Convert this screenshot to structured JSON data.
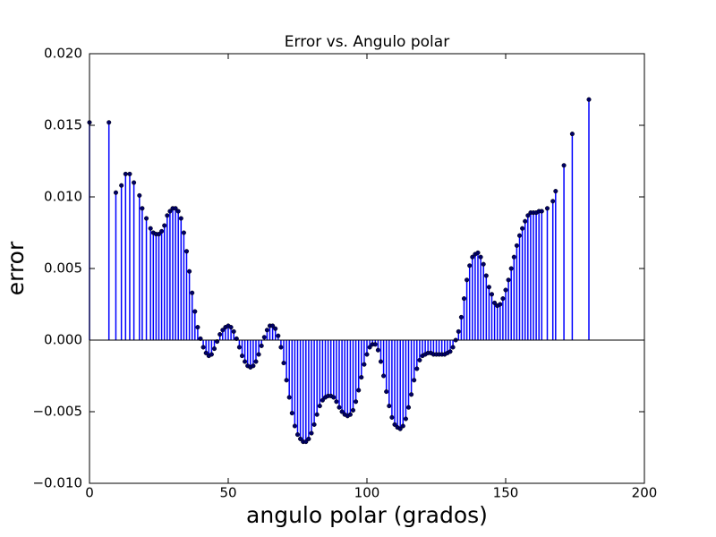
{
  "chart_data": {
    "type": "stem",
    "title": "Error vs. Angulo polar",
    "xlabel": "angulo polar (grados)",
    "ylabel": "error",
    "xlim": [
      0,
      200
    ],
    "xticks": [
      0,
      50,
      100,
      150,
      200
    ],
    "ylim": [
      -0.01,
      0.02
    ],
    "yticks": [
      {
        "value": -0.01,
        "label": "−0.010"
      },
      {
        "value": -0.005,
        "label": "−0.005"
      },
      {
        "value": 0,
        "label": "0.000"
      },
      {
        "value": 0.005,
        "label": "0.005"
      },
      {
        "value": 0.01,
        "label": "0.010"
      },
      {
        "value": 0.015,
        "label": "0.015"
      },
      {
        "value": 0.02,
        "label": "0.020"
      }
    ],
    "color": "#0000ff",
    "marker_color": "#000066",
    "x": [
      0,
      7,
      9.5,
      11.5,
      13,
      14.5,
      16,
      18,
      19,
      20.5,
      22,
      23,
      24,
      25,
      26,
      27,
      28,
      29,
      30,
      31,
      32,
      33,
      34,
      35,
      36,
      37,
      38,
      39,
      40,
      41,
      42,
      43,
      44,
      45,
      46,
      47,
      48,
      49,
      50,
      51,
      52,
      53,
      54,
      55,
      56,
      57,
      58,
      59,
      60,
      61,
      62,
      63,
      64,
      65,
      66,
      67,
      68,
      69,
      70,
      71,
      72,
      73,
      74,
      75,
      76,
      77,
      78,
      79,
      80,
      81,
      82,
      83,
      84,
      85,
      86,
      87,
      88,
      89,
      90,
      91,
      92,
      93,
      94,
      95,
      96,
      97,
      98,
      99,
      100,
      101,
      102,
      103,
      104,
      105,
      106,
      107,
      108,
      109,
      110,
      111,
      112,
      113,
      114,
      115,
      116,
      117,
      118,
      119,
      120,
      121,
      122,
      123,
      124,
      125,
      126,
      127,
      128,
      129,
      130,
      131,
      132,
      133,
      134,
      135,
      136,
      137,
      138,
      139,
      140,
      141,
      142,
      143,
      144,
      145,
      146,
      147,
      148,
      149,
      150,
      151,
      152,
      153,
      154,
      155,
      156,
      157,
      158,
      159,
      160,
      161,
      162,
      163,
      165,
      167,
      168,
      171,
      174,
      180
    ],
    "values": [
      0.0152,
      0.0152,
      0.0103,
      0.0108,
      0.0116,
      0.0116,
      0.011,
      0.0101,
      0.0092,
      0.0085,
      0.0078,
      0.0075,
      0.0074,
      0.0074,
      0.0076,
      0.008,
      0.0087,
      0.009,
      0.0092,
      0.0092,
      0.009,
      0.0085,
      0.0075,
      0.0062,
      0.0048,
      0.0033,
      0.002,
      0.0009,
      0.0001,
      -0.0005,
      -0.0009,
      -0.0011,
      -0.001,
      -0.0006,
      -0.0001,
      0.0004,
      0.0007,
      0.0009,
      0.001,
      0.0009,
      0.0006,
      0.0001,
      -0.0005,
      -0.0011,
      -0.0015,
      -0.0018,
      -0.0019,
      -0.0018,
      -0.0015,
      -0.001,
      -0.0004,
      0.0002,
      0.0007,
      0.001,
      0.001,
      0.0008,
      0.0003,
      -0.0005,
      -0.0016,
      -0.0028,
      -0.004,
      -0.0051,
      -0.006,
      -0.0066,
      -0.0069,
      -0.0071,
      -0.0071,
      -0.0069,
      -0.0065,
      -0.0059,
      -0.0052,
      -0.0046,
      -0.0042,
      -0.004,
      -0.0039,
      -0.0039,
      -0.004,
      -0.0043,
      -0.0047,
      -0.005,
      -0.0052,
      -0.0053,
      -0.0052,
      -0.0049,
      -0.0043,
      -0.0035,
      -0.0026,
      -0.0017,
      -0.001,
      -0.0005,
      -0.0003,
      -0.0003,
      -0.0007,
      -0.0015,
      -0.0025,
      -0.0036,
      -0.0046,
      -0.0054,
      -0.0059,
      -0.0061,
      -0.0062,
      -0.006,
      -0.0055,
      -0.0047,
      -0.0038,
      -0.0028,
      -0.002,
      -0.0014,
      -0.0011,
      -0.001,
      -0.0009,
      -0.0009,
      -0.001,
      -0.001,
      -0.001,
      -0.001,
      -0.001,
      -0.0009,
      -0.0008,
      -0.0005,
      0,
      0.0006,
      0.0016,
      0.0029,
      0.0042,
      0.0052,
      0.0058,
      0.006,
      0.0061,
      0.0058,
      0.0053,
      0.0045,
      0.0037,
      0.0032,
      0.0026,
      0.0024,
      0.0025,
      0.0029,
      0.0035,
      0.0042,
      0.005,
      0.0058,
      0.0066,
      0.0073,
      0.0078,
      0.0083,
      0.0087,
      0.0089,
      0.0089,
      0.0089,
      0.009,
      0.009,
      0.0092,
      0.0097,
      0.0104,
      0.0122,
      0.0144,
      0.0168
    ]
  }
}
